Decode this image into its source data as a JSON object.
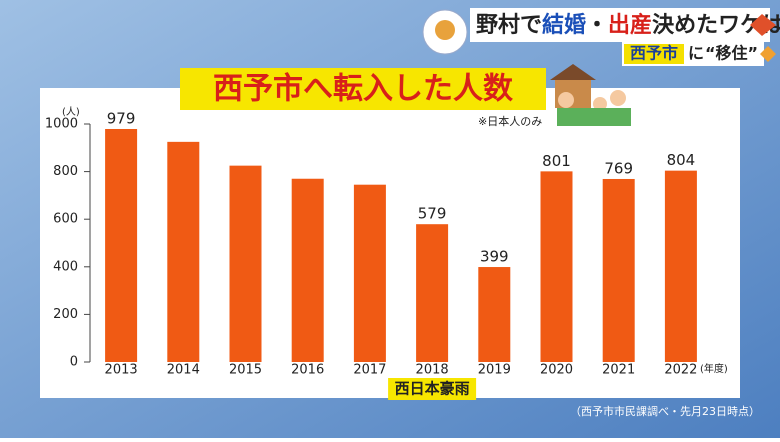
{
  "headline": {
    "parts": [
      "野村で",
      "結婚",
      "・",
      "出産",
      "決めたワケは？"
    ]
  },
  "subhead": {
    "place": "西予市",
    "particle": "に",
    "topic": "“移住”"
  },
  "chart_data": {
    "type": "bar",
    "title": "西予市へ転入した人数",
    "note": "※日本人のみ",
    "y_unit": "(人)",
    "x_unit": "(年度)",
    "categories": [
      "2013",
      "2014",
      "2015",
      "2016",
      "2017",
      "2018",
      "2019",
      "2020",
      "2021",
      "2022"
    ],
    "values": [
      979,
      925,
      825,
      770,
      745,
      579,
      399,
      801,
      769,
      804
    ],
    "value_labels": [
      "979",
      null,
      null,
      null,
      null,
      "579",
      "399",
      "801",
      "769",
      "804"
    ],
    "color": "#f05a14",
    "ylim": [
      0,
      1000
    ],
    "yticks": [
      0,
      200,
      400,
      600,
      800,
      1000
    ],
    "grid": false,
    "annotation": {
      "text": "西日本豪雨",
      "category": "2018"
    },
    "source": "（西予市市民課調べ・先月23日時点）"
  }
}
